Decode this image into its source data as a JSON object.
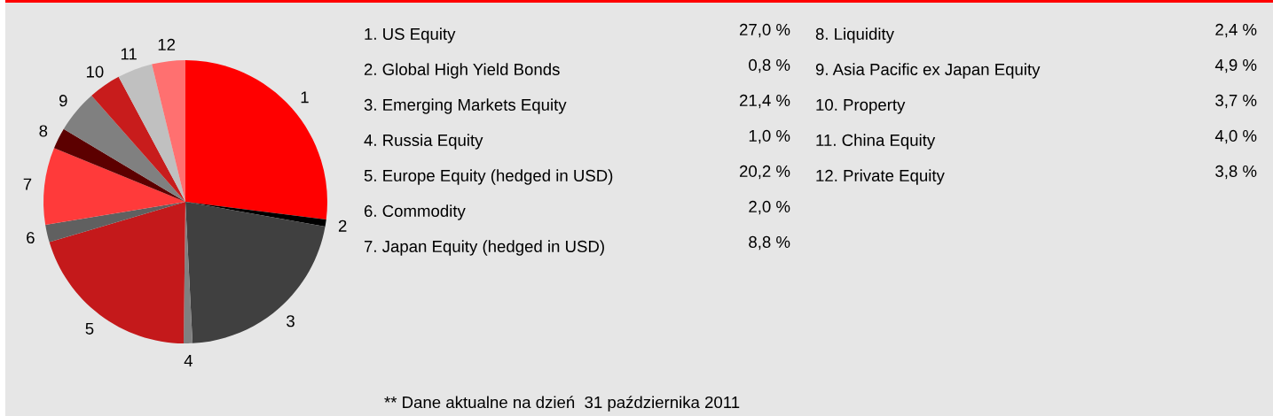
{
  "chart_data": [
    {
      "type": "pie",
      "categories": [
        "1",
        "2",
        "3",
        "4",
        "5",
        "6",
        "7",
        "8",
        "9",
        "10",
        "11",
        "12"
      ],
      "values": [
        27.0,
        0.8,
        21.4,
        1.0,
        20.2,
        2.0,
        8.8,
        2.4,
        4.9,
        3.7,
        4.0,
        3.8
      ],
      "colors": [
        "#ff0000",
        "#000000",
        "#404040",
        "#808080",
        "#c4191b",
        "#606060",
        "#ff3a3a",
        "#5c0000",
        "#808080",
        "#c81c1c",
        "#c0c0c0",
        "#ff7070"
      ],
      "annotations": [
        "** Dane aktualne na dzień  31 października 2011"
      ]
    },
    {
      "type": "other",
      "annotations": [
        "1. US Equity",
        "27,0 %",
        "2. Global High Yield Bonds",
        "0,8 %",
        "3. Emerging Markets Equity",
        "21,4 %",
        "4. Russia Equity",
        "1,0 %",
        "5. Europe Equity (hedged in USD)",
        "20,2 %",
        "6. Commodity",
        "2,0 %",
        "7. Japan Equity (hedged in USD)",
        "8,8 %",
        "8. Liquidity",
        "2,4 %",
        "9. Asia Pacific ex Japan Equity",
        "4,9 %",
        "10. Property",
        "3,7 %",
        "11. China Equity",
        "4,0 %",
        "12. Private Equity",
        "3,8 %"
      ]
    }
  ]
}
